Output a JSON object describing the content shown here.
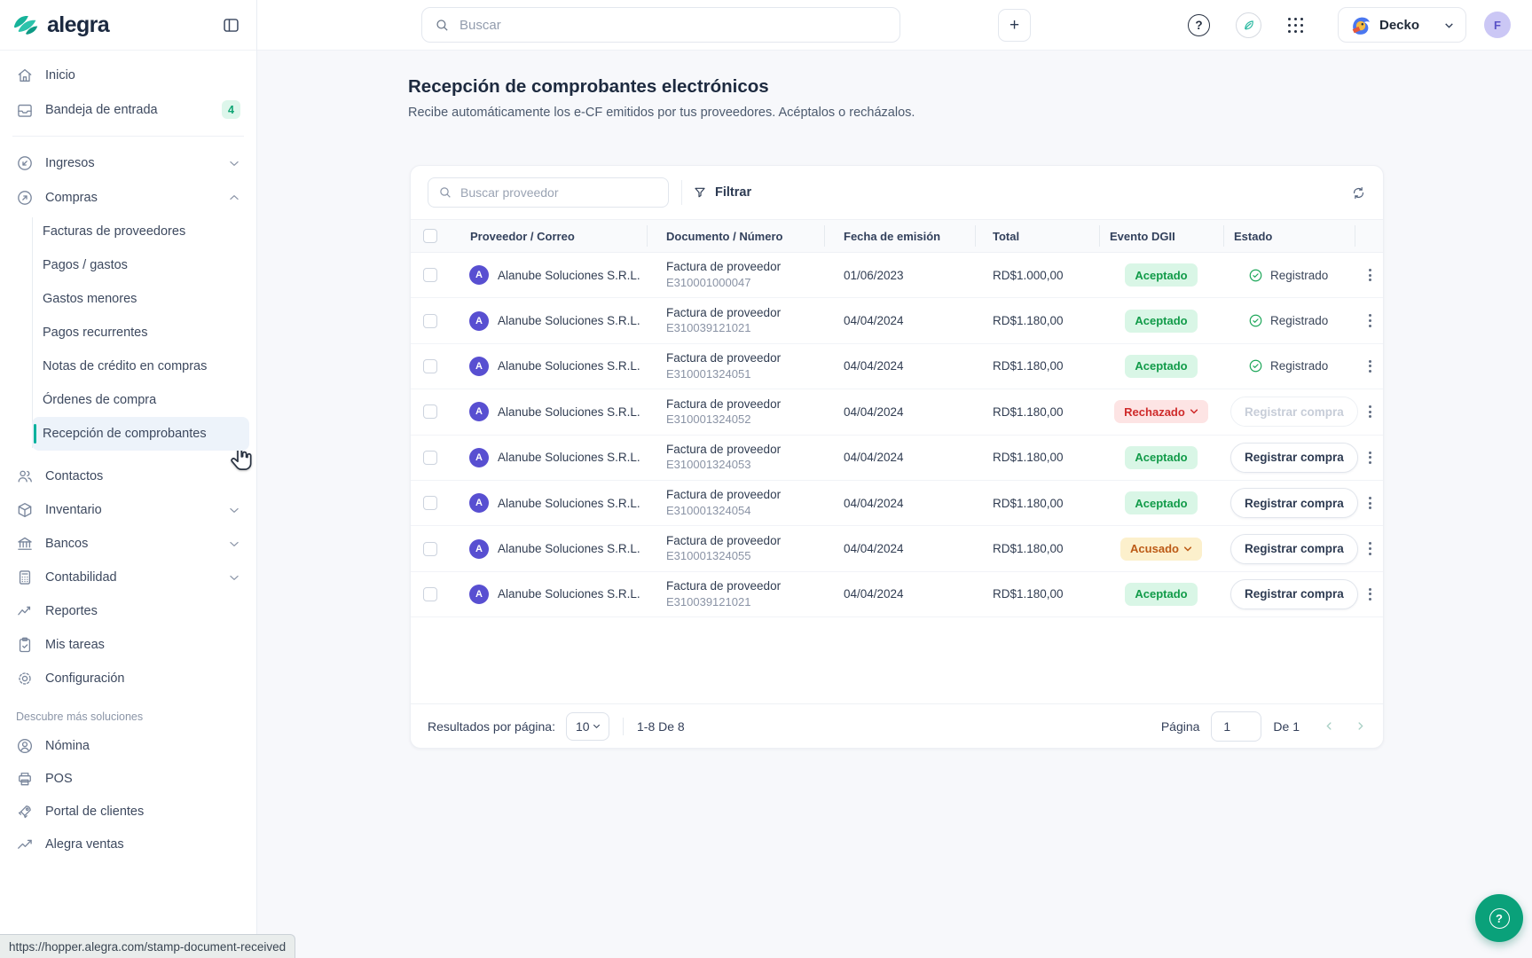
{
  "topbar": {
    "search_placeholder": "Buscar",
    "plus_label": "+",
    "help_label": "?",
    "workspace_name": "Decko",
    "avatar_letter": "F"
  },
  "sidebar": {
    "brand": "alegra",
    "primary": [
      {
        "label": "Inicio",
        "icon": "home-icon"
      },
      {
        "label": "Bandeja de entrada",
        "icon": "inbox-icon",
        "badge": "4"
      }
    ],
    "modules": [
      {
        "label": "Ingresos",
        "icon": "income-icon",
        "chevron": "down"
      },
      {
        "label": "Compras",
        "icon": "purchases-icon",
        "chevron": "up",
        "children": [
          {
            "label": "Facturas de proveedores"
          },
          {
            "label": "Pagos / gastos"
          },
          {
            "label": "Gastos menores"
          },
          {
            "label": "Pagos recurrentes"
          },
          {
            "label": "Notas de crédito en compras"
          },
          {
            "label": "Órdenes de compra"
          },
          {
            "label": "Recepción de comprobantes",
            "active": true
          }
        ]
      }
    ],
    "tools": [
      {
        "label": "Contactos",
        "icon": "contacts-icon"
      },
      {
        "label": "Inventario",
        "icon": "inventory-icon",
        "chevron": "down"
      },
      {
        "label": "Bancos",
        "icon": "bank-icon",
        "chevron": "down"
      },
      {
        "label": "Contabilidad",
        "icon": "accounting-icon",
        "chevron": "down"
      },
      {
        "label": "Reportes",
        "icon": "reports-icon"
      },
      {
        "label": "Mis tareas",
        "icon": "tasks-icon"
      },
      {
        "label": "Configuración",
        "icon": "settings-icon"
      }
    ],
    "discover_label": "Descubre más soluciones",
    "discover": [
      {
        "label": "Nómina",
        "icon": "payroll-icon"
      },
      {
        "label": "POS",
        "icon": "pos-icon"
      },
      {
        "label": "Portal de clientes",
        "icon": "portal-icon"
      },
      {
        "label": "Alegra ventas",
        "icon": "sales-icon"
      }
    ]
  },
  "page": {
    "title": "Recepción de comprobantes electrónicos",
    "subtitle": "Recibe automáticamente los e-CF emitidos por tus proveedores. Acéptalos o recházalos."
  },
  "toolbar": {
    "search_placeholder": "Buscar proveedor",
    "filter_label": "Filtrar"
  },
  "table": {
    "headers": [
      "Proveedor / Correo",
      "Documento / Número",
      "Fecha de emisión",
      "Total",
      "Evento DGII",
      "Estado"
    ],
    "rows": [
      {
        "provider": "Alanube Soluciones S.R.L.",
        "avatar": "A",
        "doc_type": "Factura de proveedor",
        "doc_number": "E310001000047",
        "date": "01/06/2023",
        "total": "RD$1.000,00",
        "evento": {
          "label": "Aceptado",
          "type": "accepted",
          "chevron": false
        },
        "estado": {
          "type": "registered",
          "label": "Registrado"
        }
      },
      {
        "provider": "Alanube Soluciones S.R.L.",
        "avatar": "A",
        "doc_type": "Factura de proveedor",
        "doc_number": "E310039121021",
        "date": "04/04/2024",
        "total": "RD$1.180,00",
        "evento": {
          "label": "Aceptado",
          "type": "accepted",
          "chevron": false
        },
        "estado": {
          "type": "registered",
          "label": "Registrado"
        }
      },
      {
        "provider": "Alanube Soluciones S.R.L.",
        "avatar": "A",
        "doc_type": "Factura de proveedor",
        "doc_number": "E310001324051",
        "date": "04/04/2024",
        "total": "RD$1.180,00",
        "evento": {
          "label": "Aceptado",
          "type": "accepted",
          "chevron": false
        },
        "estado": {
          "type": "registered",
          "label": "Registrado"
        }
      },
      {
        "provider": "Alanube Soluciones S.R.L.",
        "avatar": "A",
        "doc_type": "Factura de proveedor",
        "doc_number": "E310001324052",
        "date": "04/04/2024",
        "total": "RD$1.180,00",
        "evento": {
          "label": "Rechazado",
          "type": "rejected",
          "chevron": true
        },
        "estado": {
          "type": "register-disabled",
          "label": "Registrar compra"
        }
      },
      {
        "provider": "Alanube Soluciones S.R.L.",
        "avatar": "A",
        "doc_type": "Factura de proveedor",
        "doc_number": "E310001324053",
        "date": "04/04/2024",
        "total": "RD$1.180,00",
        "evento": {
          "label": "Aceptado",
          "type": "accepted",
          "chevron": false
        },
        "estado": {
          "type": "register",
          "label": "Registrar compra"
        }
      },
      {
        "provider": "Alanube Soluciones S.R.L.",
        "avatar": "A",
        "doc_type": "Factura de proveedor",
        "doc_number": "E310001324054",
        "date": "04/04/2024",
        "total": "RD$1.180,00",
        "evento": {
          "label": "Aceptado",
          "type": "accepted",
          "chevron": false
        },
        "estado": {
          "type": "register",
          "label": "Registrar compra"
        }
      },
      {
        "provider": "Alanube Soluciones S.R.L.",
        "avatar": "A",
        "doc_type": "Factura de proveedor",
        "doc_number": "E310001324055",
        "date": "04/04/2024",
        "total": "RD$1.180,00",
        "evento": {
          "label": "Acusado",
          "type": "acknowledged",
          "chevron": true
        },
        "estado": {
          "type": "register",
          "label": "Registrar compra"
        }
      },
      {
        "provider": "Alanube Soluciones S.R.L.",
        "avatar": "A",
        "doc_type": "Factura de proveedor",
        "doc_number": "E310039121021",
        "date": "04/04/2024",
        "total": "RD$1.180,00",
        "evento": {
          "label": "Aceptado",
          "type": "accepted",
          "chevron": false
        },
        "estado": {
          "type": "register",
          "label": "Registrar compra"
        }
      }
    ]
  },
  "pagination": {
    "results_label": "Resultados por página:",
    "page_size": "10",
    "range_label": "1-8 De 8",
    "page_label": "Página",
    "page_value": "1",
    "of_label": "De 1"
  },
  "statusbar": {
    "url": "https://hopper.alegra.com/stamp-document-received"
  },
  "colors": {
    "accent_teal": "#00b19d",
    "badge_green_bg": "#d9f6e6",
    "badge_green_text": "#119b49",
    "badge_red_bg": "#fde4e4",
    "badge_red_text": "#cf2b2b",
    "badge_yellow_bg": "#fcf0cc",
    "badge_yellow_text": "#bc5a16",
    "avatar_indigo": "#584fd1",
    "fab_green": "#0aa17a"
  }
}
